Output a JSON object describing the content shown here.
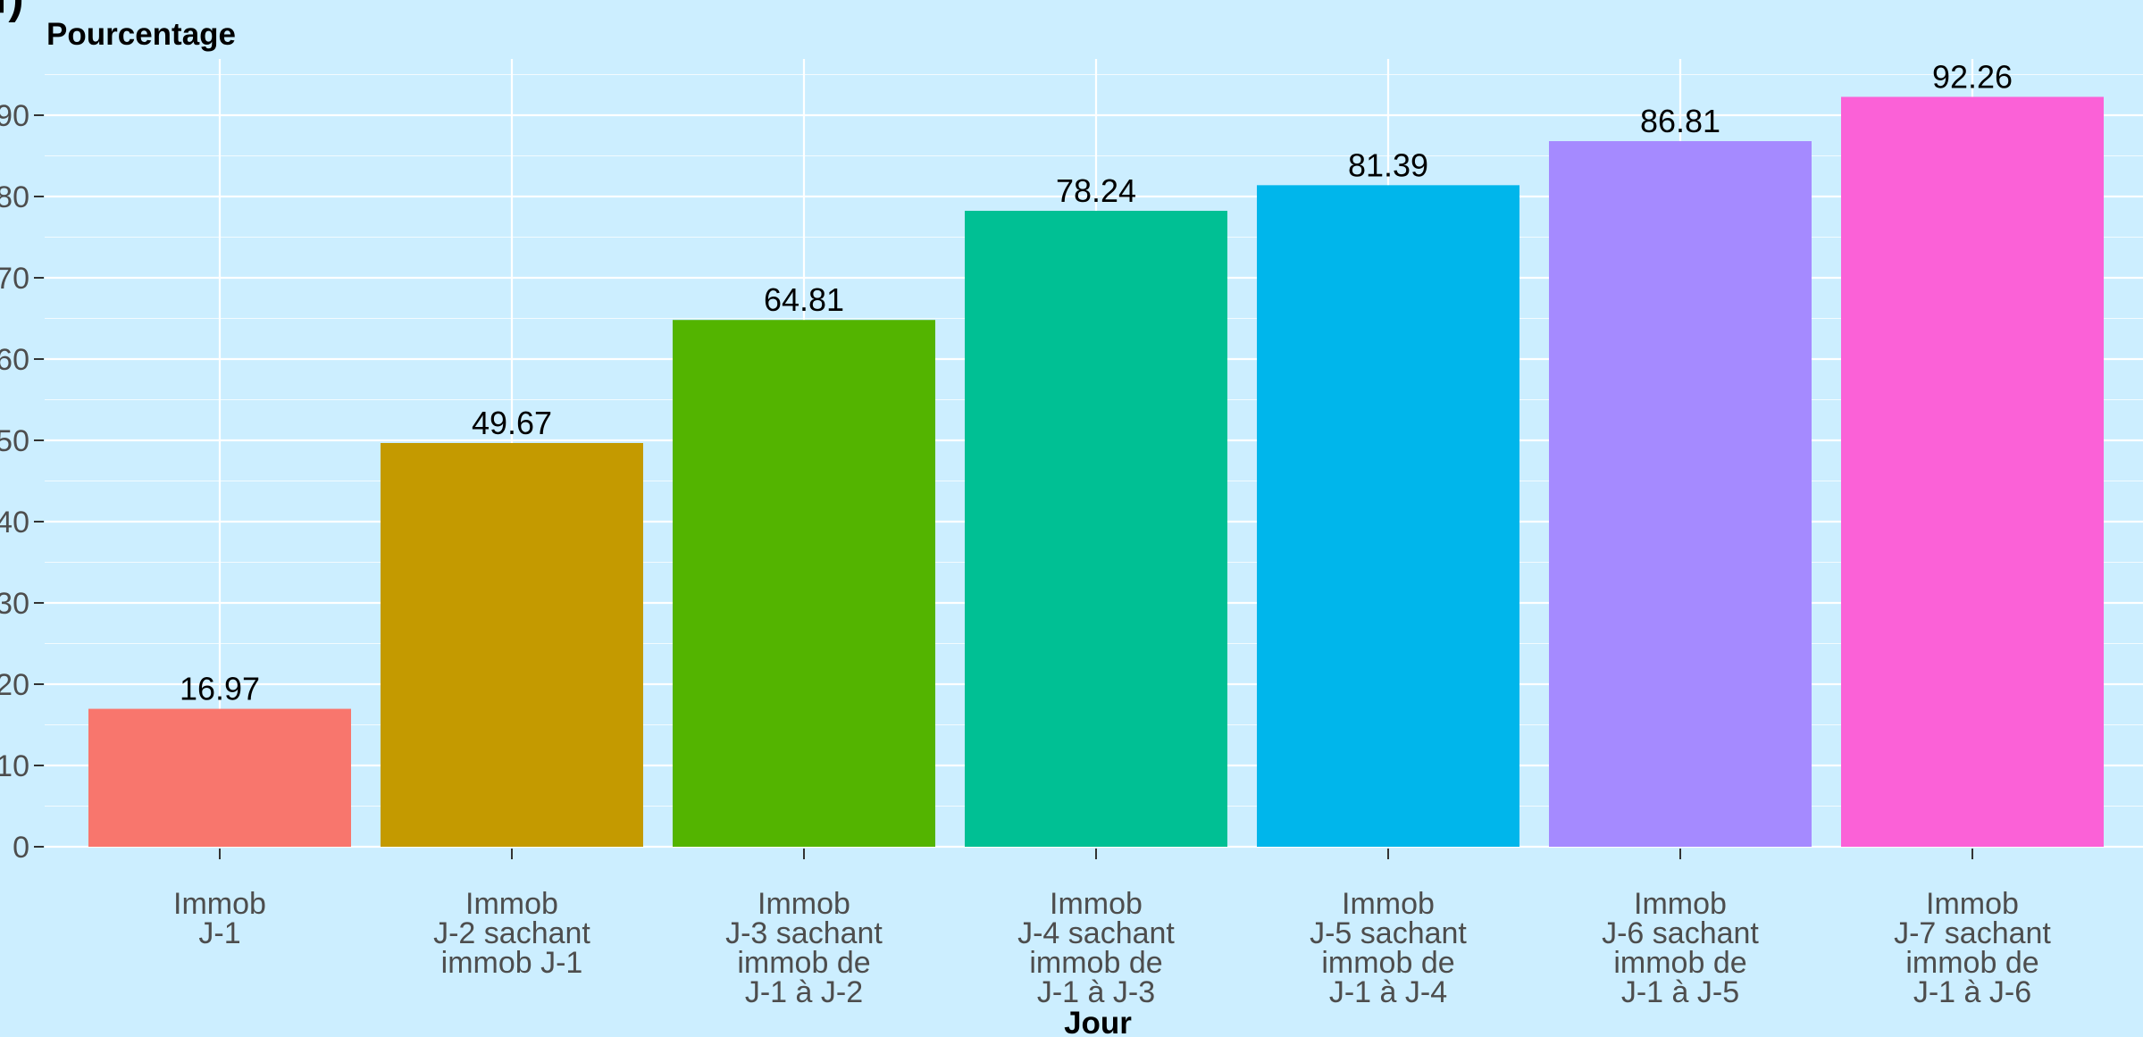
{
  "panel_tag": "f)",
  "chart_data": {
    "type": "bar",
    "title": "",
    "xlabel": "Jour",
    "ylabel": "Pourcentage",
    "ylim": [
      0,
      92.26
    ],
    "y_ticks": [
      0,
      10,
      20,
      30,
      40,
      50,
      60,
      70,
      80,
      90
    ],
    "grid": true,
    "legend": "none",
    "categories": [
      [
        "Immob",
        "J-1"
      ],
      [
        "Immob",
        "J-2 sachant",
        "immob J-1"
      ],
      [
        "Immob",
        "J-3 sachant",
        "immob de",
        "J-1 à J-2"
      ],
      [
        "Immob",
        "J-4 sachant",
        "immob de",
        "J-1 à J-3"
      ],
      [
        "Immob",
        "J-5 sachant",
        "immob de",
        "J-1 à J-4"
      ],
      [
        "Immob",
        "J-6 sachant",
        "immob de",
        "J-1 à J-5"
      ],
      [
        "Immob",
        "J-7 sachant",
        "immob de",
        "J-1 à J-6"
      ]
    ],
    "values": [
      16.97,
      49.67,
      64.81,
      78.24,
      81.39,
      86.81,
      92.26
    ],
    "value_labels": [
      "16.97",
      "49.67",
      "64.81",
      "78.24",
      "81.39",
      "86.81",
      "92.26"
    ],
    "colors": [
      "#F8766D",
      "#C49A00",
      "#53B400",
      "#00C094",
      "#00B6EB",
      "#A58AFF",
      "#FB61D7"
    ],
    "background_color": "#CCEEFF",
    "grid_color": "#FFFFFF"
  }
}
